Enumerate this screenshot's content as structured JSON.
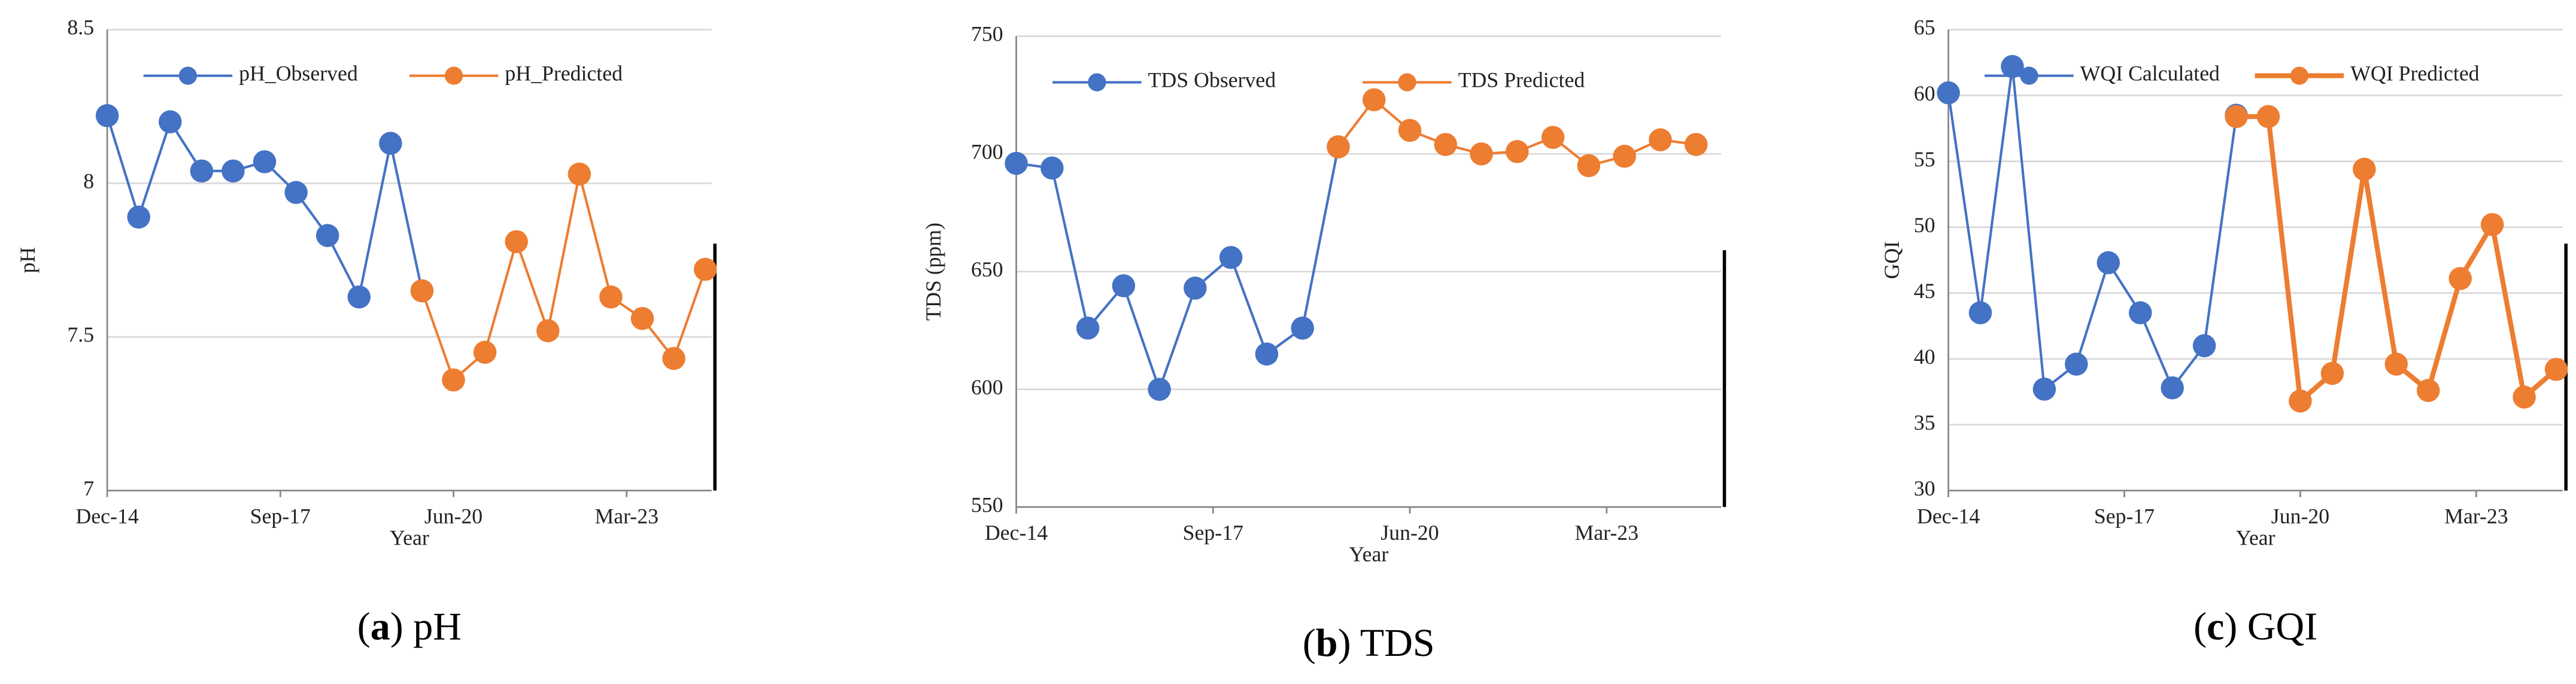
{
  "chart_data": [
    {
      "type": "line",
      "y_label": "pH",
      "x_label": "Year",
      "caption": [
        "(",
        "a",
        ") pH"
      ],
      "x": [
        0,
        1,
        2,
        3,
        4,
        5,
        6,
        7,
        8,
        9,
        10,
        11,
        12,
        13,
        14,
        15,
        16,
        17,
        18,
        19
      ],
      "xlim": [
        0,
        19.2
      ],
      "xticks": [
        {
          "value": 0,
          "label": "Dec-14"
        },
        {
          "value": 5.5,
          "label": "Sep-17"
        },
        {
          "value": 11,
          "label": "Jun-20"
        },
        {
          "value": 16.5,
          "label": "Mar-23"
        }
      ],
      "ylim": [
        7,
        8.5
      ],
      "yticks": [
        7,
        7.5,
        8,
        8.5
      ],
      "grid": true,
      "legend": "top",
      "series": [
        {
          "name": "pH_Observed",
          "color": "#4472c4",
          "line_width": 1.5,
          "values": [
            8.22,
            7.89,
            8.2,
            8.04,
            8.04,
            8.07,
            7.97,
            7.83,
            7.63,
            8.13,
            7.65,
            null,
            null,
            null,
            null,
            null,
            null,
            null,
            null,
            null
          ]
        },
        {
          "name": "pH_Predicted",
          "color": "#ed7d31",
          "line_width": 1.5,
          "values": [
            null,
            null,
            null,
            null,
            null,
            null,
            null,
            null,
            null,
            null,
            7.65,
            7.36,
            7.45,
            7.81,
            7.52,
            8.03,
            7.63,
            7.56,
            7.43,
            7.72
          ]
        }
      ]
    },
    {
      "type": "line",
      "y_label": "TDS (ppm)",
      "x_label": "Year",
      "caption": [
        "(",
        "b",
        ") TDS"
      ],
      "x": [
        0,
        1,
        2,
        3,
        4,
        5,
        6,
        7,
        8,
        9,
        10,
        11,
        12,
        13,
        14,
        15,
        16,
        17,
        18,
        19
      ],
      "xlim": [
        0,
        19.7
      ],
      "xticks": [
        {
          "value": 0,
          "label": "Dec-14"
        },
        {
          "value": 5.5,
          "label": "Sep-17"
        },
        {
          "value": 11,
          "label": "Jun-20"
        },
        {
          "value": 16.5,
          "label": "Mar-23"
        }
      ],
      "ylim": [
        550,
        750
      ],
      "yticks": [
        550,
        600,
        650,
        700,
        750
      ],
      "grid": true,
      "legend": "top",
      "series": [
        {
          "name": "TDS Observed",
          "color": "#4472c4",
          "line_width": 1.5,
          "values": [
            696,
            694,
            626,
            644,
            600,
            643,
            656,
            615,
            626,
            703,
            null,
            null,
            null,
            null,
            null,
            null,
            null,
            null,
            null,
            null
          ]
        },
        {
          "name": "TDS Predicted",
          "color": "#ed7d31",
          "line_width": 1.5,
          "values": [
            null,
            null,
            null,
            null,
            null,
            null,
            null,
            null,
            null,
            703,
            723,
            710,
            704,
            700,
            701,
            707,
            695,
            699,
            706,
            704
          ]
        }
      ]
    },
    {
      "type": "line",
      "y_label": "GQI",
      "x_label": "Year",
      "caption": [
        "(",
        "c",
        ") GQI"
      ],
      "x": [
        0,
        1,
        2,
        3,
        4,
        5,
        6,
        7,
        8,
        9,
        10,
        11,
        12,
        13,
        14,
        15,
        16,
        17,
        18,
        19
      ],
      "xlim": [
        0,
        19.2
      ],
      "xticks": [
        {
          "value": 0,
          "label": "Dec-14"
        },
        {
          "value": 5.5,
          "label": "Sep-17"
        },
        {
          "value": 11,
          "label": "Jun-20"
        },
        {
          "value": 16.5,
          "label": "Mar-23"
        }
      ],
      "ylim": [
        30,
        65
      ],
      "yticks": [
        30,
        35,
        40,
        45,
        50,
        55,
        60,
        65
      ],
      "grid": true,
      "legend": "top",
      "series": [
        {
          "name": "WQI Calculated",
          "color": "#4472c4",
          "line_width": 1.5,
          "values": [
            60.2,
            43.5,
            62.2,
            37.7,
            39.6,
            47.3,
            43.5,
            37.8,
            41,
            58.5,
            null,
            null,
            null,
            null,
            null,
            null,
            null,
            null,
            null,
            null
          ]
        },
        {
          "name": "WQI Predicted",
          "color": "#ed7d31",
          "line_width": 3,
          "values": [
            null,
            null,
            null,
            null,
            null,
            null,
            null,
            null,
            null,
            58.4,
            58.4,
            36.8,
            38.9,
            54.4,
            39.6,
            37.6,
            46.1,
            50.2,
            37.1,
            39.2
          ]
        }
      ]
    }
  ]
}
